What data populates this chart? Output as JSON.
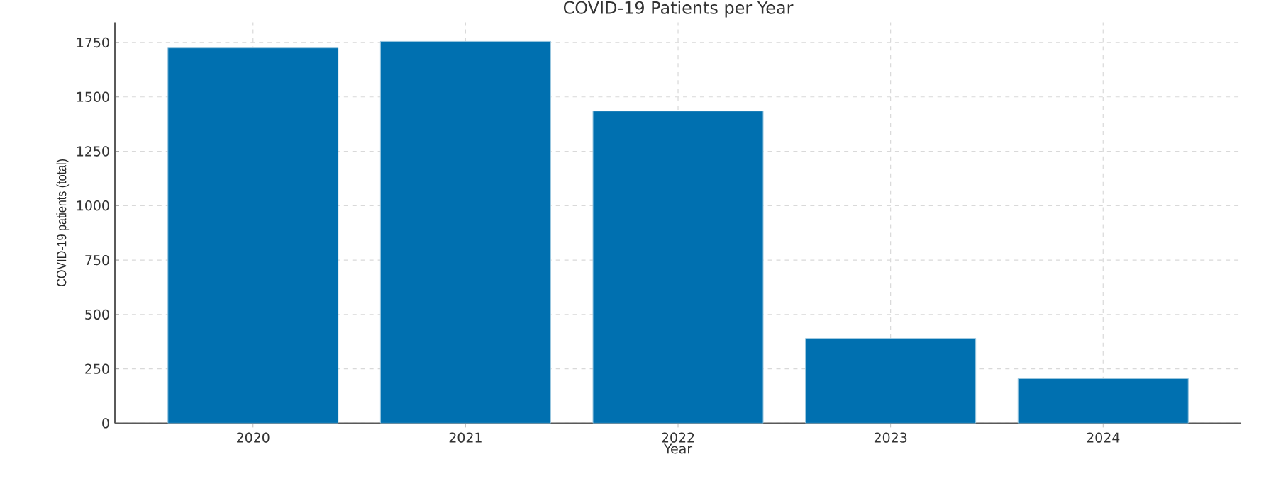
{
  "chart_data": {
    "type": "bar",
    "title": "COVID-19 Patients per Year",
    "xlabel": "Year",
    "ylabel": "COVID-19 patients (total)",
    "categories": [
      "2020",
      "2021",
      "2022",
      "2023",
      "2024"
    ],
    "values": [
      1725,
      1755,
      1435,
      390,
      205
    ],
    "color": "#0070b0",
    "ylim": [
      0,
      1843
    ],
    "yticks": [
      0,
      250,
      500,
      750,
      1000,
      1250,
      1500,
      1750
    ],
    "grid": true
  }
}
